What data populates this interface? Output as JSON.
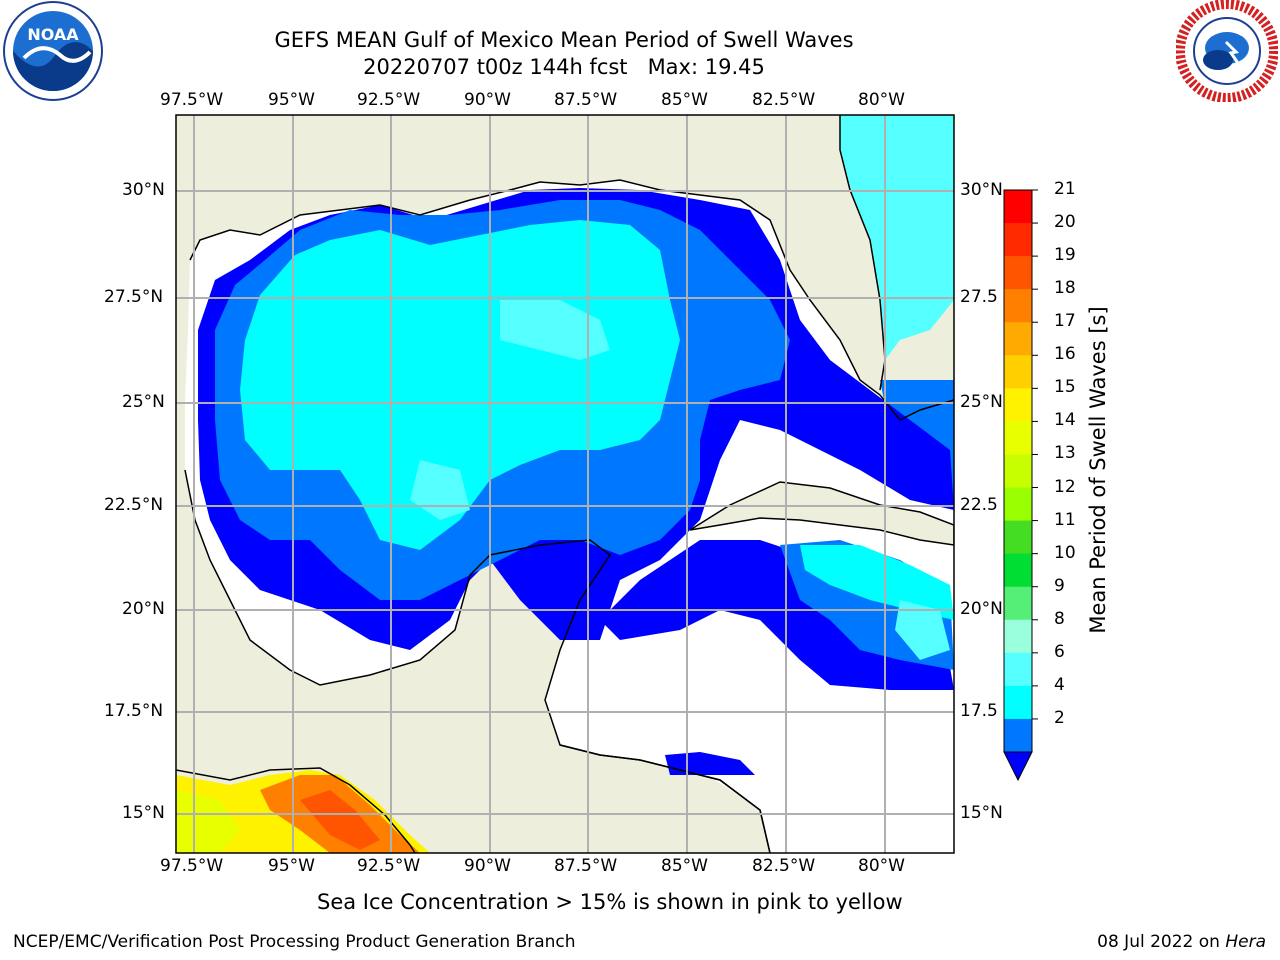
{
  "title": {
    "line1": "GEFS MEAN Gulf of Mexico Mean Period of Swell Waves",
    "line2": "20220707 t00z 144h fcst   Max: 19.45"
  },
  "logos": {
    "left": {
      "icon": "noaa-logo-icon",
      "text": "NOAA"
    },
    "right": {
      "icon": "nws-logo-icon",
      "text": "NATIONAL WEATHER SERVICE"
    }
  },
  "axes": {
    "lon_labels": [
      "97.5°W",
      "95°W",
      "92.5°W",
      "90°W",
      "87.5°W",
      "85°W",
      "82.5°W",
      "80°W"
    ],
    "lat_labels_left": [
      "30°N",
      "27.5°N",
      "25°N",
      "22.5°N",
      "20°N",
      "17.5°N",
      "15°N"
    ],
    "lat_labels_right": [
      "30°N",
      "27.5",
      "25°N",
      "22.5",
      "20°N",
      "17.5",
      "15°N"
    ]
  },
  "colorbar": {
    "label": "Mean Period of Swell Waves [s]",
    "ticks": [
      "21",
      "20",
      "19",
      "18",
      "17",
      "16",
      "15",
      "14",
      "13",
      "12",
      "11",
      "10",
      "9",
      "8",
      "6",
      "4",
      "2"
    ],
    "colors": [
      "#ff0000",
      "#ff2a00",
      "#ff5500",
      "#ff8000",
      "#ffaa00",
      "#ffd000",
      "#fff200",
      "#e8ff00",
      "#c8ff00",
      "#99ff00",
      "#44dd22",
      "#00dd33",
      "#55ee77",
      "#99ffdd",
      "#55ffff",
      "#00ffff",
      "#0077ff"
    ],
    "extend_color": "#0000ff"
  },
  "note": "Sea Ice Concentration > 15% is shown in pink to yellow",
  "footer": {
    "left": "NCEP/EMC/Verification Post Processing Product Generation Branch",
    "right_prefix": "08 Jul 2022 on ",
    "right_italic": "Hera"
  },
  "colors": {
    "land": "#eeeedc",
    "grid": "#b0b0b0",
    "sea_blue": "#0000ff",
    "sea_mid": "#0077ff",
    "sea_cyan": "#00ffff",
    "sea_light": "#55ffff"
  }
}
